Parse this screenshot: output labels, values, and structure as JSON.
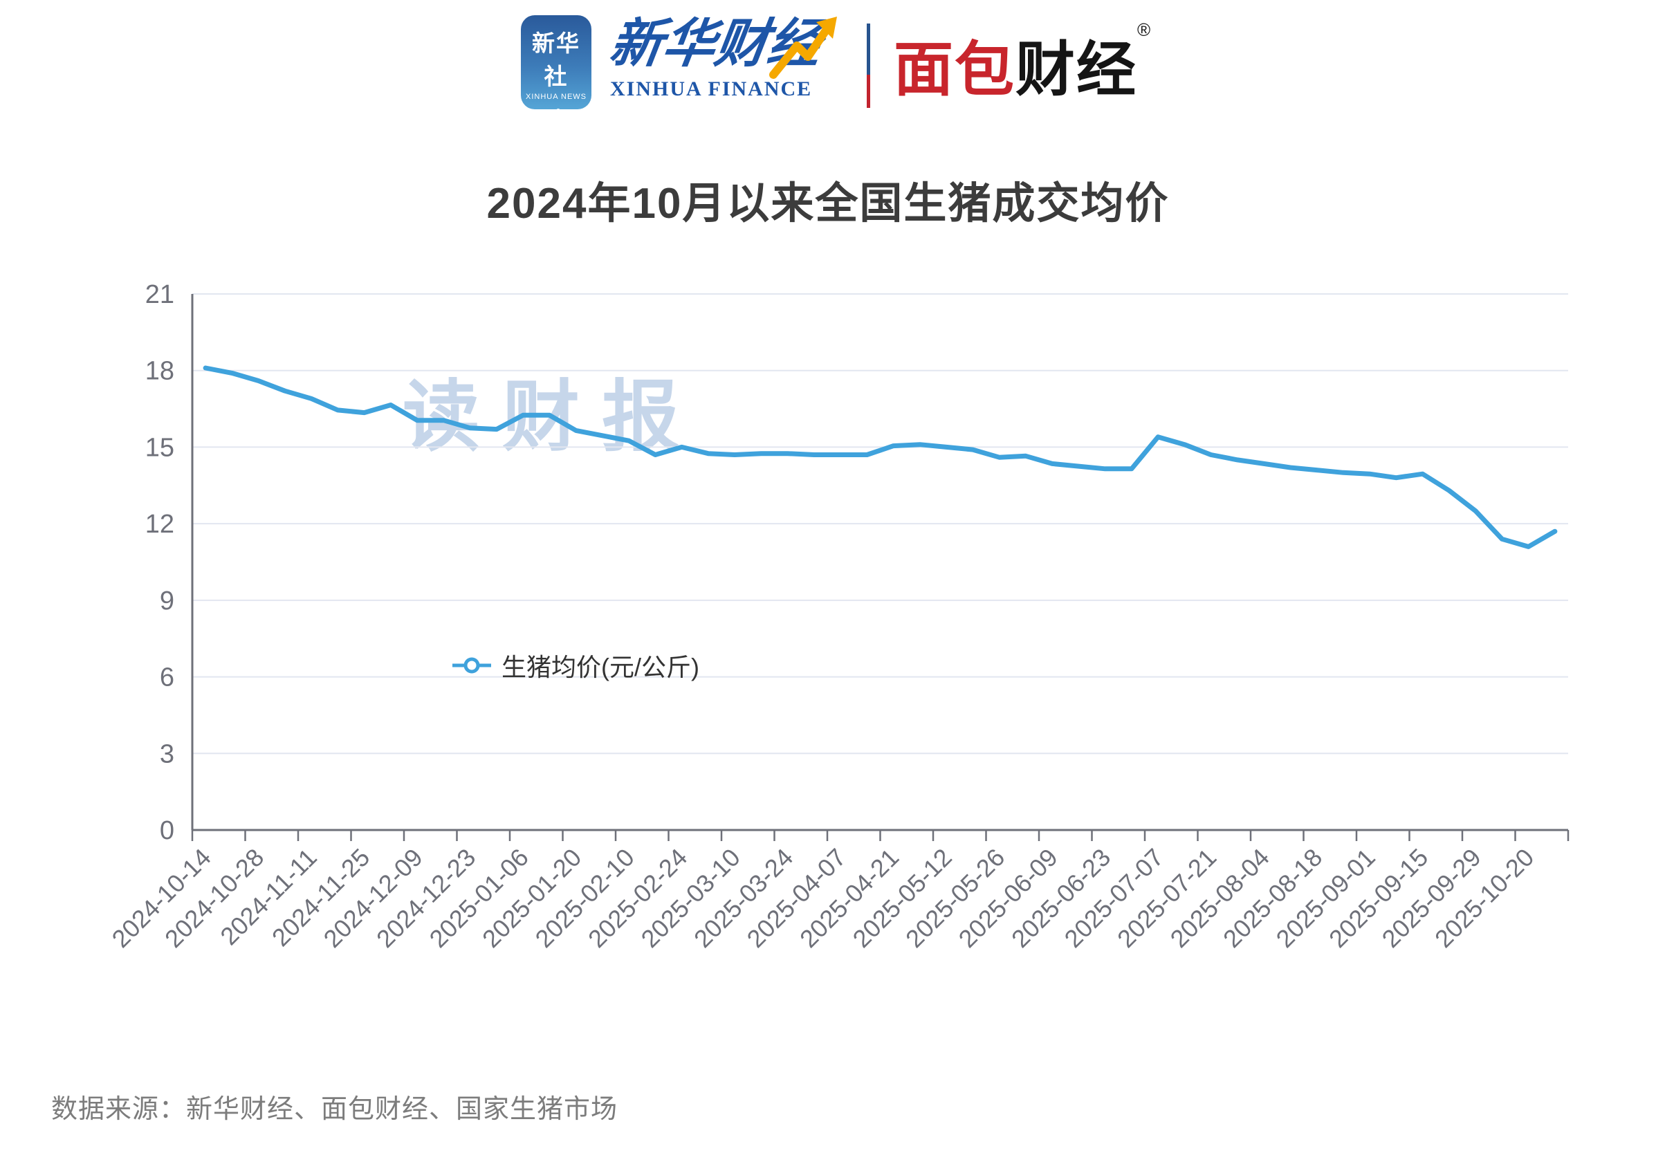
{
  "header": {
    "xinhua_app": {
      "line1": "新华社",
      "line2": "XINHUA NEWS"
    },
    "xinhua_finance": {
      "cn": "新华财经",
      "en": "XINHUA FINANCE"
    },
    "bread": {
      "p1": "面包",
      "p2": "财经",
      "reg": "®"
    }
  },
  "chart_data": {
    "type": "line",
    "title": "2024年10月以来全国生猪成交均价",
    "legend": "生猪均价(元/公斤)",
    "watermark": "读财报",
    "ylabel": "",
    "xlabel": "",
    "ylim": [
      0,
      21
    ],
    "y_ticks": [
      0,
      3,
      6,
      9,
      12,
      15,
      18,
      21
    ],
    "grid": "horizontal",
    "legend_position": "bottom",
    "label_every": 2,
    "x_tick_labels": [
      "2024-10-14",
      "2024-10-28",
      "2024-11-11",
      "2024-11-25",
      "2024-12-09",
      "2024-12-23",
      "2025-01-06",
      "2025-01-20",
      "2025-02-10",
      "2025-02-24",
      "2025-03-10",
      "2025-03-24",
      "2025-04-07",
      "2025-04-21",
      "2025-05-12",
      "2025-05-26",
      "2025-06-09",
      "2025-06-23",
      "2025-07-07",
      "2025-07-21",
      "2025-08-04",
      "2025-08-18",
      "2025-09-01",
      "2025-09-15",
      "2025-09-29",
      "2025-10-20"
    ],
    "series": [
      {
        "name": "生猪均价(元/公斤)",
        "values": [
          18.1,
          17.9,
          17.6,
          17.2,
          16.9,
          16.45,
          16.35,
          16.65,
          16.05,
          16.05,
          15.75,
          15.7,
          16.25,
          16.25,
          15.65,
          15.45,
          15.25,
          14.7,
          15.0,
          14.75,
          14.7,
          14.75,
          14.75,
          14.7,
          14.7,
          14.7,
          15.05,
          15.1,
          15.0,
          14.9,
          14.6,
          14.65,
          14.35,
          14.25,
          14.15,
          14.15,
          15.4,
          15.1,
          14.7,
          14.5,
          14.35,
          14.2,
          14.1,
          14.0,
          13.95,
          13.8,
          13.95,
          13.3,
          12.5,
          11.4,
          11.1,
          11.7
        ]
      }
    ],
    "colors": {
      "line": "#3fa2dc",
      "axis": "#6e7079",
      "grid": "#e2e6f0",
      "tick_label": "#6e7079",
      "frame_blue": "#28548f",
      "frame_red": "#c2232e"
    }
  },
  "footer": {
    "source": "数据来源：新华财经、面包财经、国家生猪市场"
  }
}
